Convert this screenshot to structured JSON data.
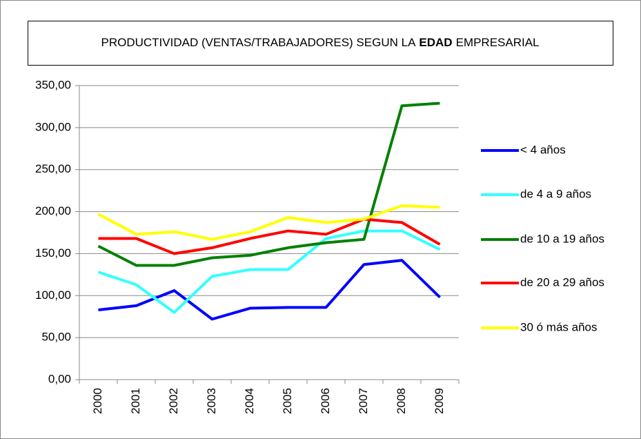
{
  "chart_data": {
    "type": "line",
    "title": [
      "PRODUCTIVIDAD (VENTAS/TRABAJADORES) SEGUN LA",
      "EDAD",
      "EMPRESARIAL"
    ],
    "categories": [
      "2000",
      "2001",
      "2002",
      "2003",
      "2004",
      "2005",
      "2006",
      "2007",
      "2008",
      "2009"
    ],
    "series": [
      {
        "name": "< 4 años",
        "color": "#0000ff",
        "values": [
          83,
          88,
          106,
          72,
          85,
          86,
          86,
          137,
          142,
          98
        ]
      },
      {
        "name": "de 4 a 9 años",
        "color": "#33ffff",
        "values": [
          128,
          113,
          80,
          123,
          131,
          131,
          168,
          177,
          177,
          155
        ]
      },
      {
        "name": "de 10 a 19 años",
        "color": "#008000",
        "values": [
          159,
          136,
          136,
          145,
          148,
          157,
          163,
          167,
          326,
          329
        ]
      },
      {
        "name": "de 20 a 29 años",
        "color": "#ff0000",
        "values": [
          168,
          168,
          150,
          157,
          168,
          177,
          173,
          191,
          187,
          161
        ]
      },
      {
        "name": "30 ó más años",
        "color": "#ffff00",
        "values": [
          197,
          173,
          176,
          167,
          176,
          193,
          187,
          191,
          207,
          205
        ]
      }
    ],
    "ylim": [
      0,
      350
    ],
    "yticks": [
      {
        "value": 0,
        "label": "0,00"
      },
      {
        "value": 50,
        "label": "50,00"
      },
      {
        "value": 100,
        "label": "100,00"
      },
      {
        "value": 150,
        "label": "150,00"
      },
      {
        "value": 200,
        "label": "200,00"
      },
      {
        "value": 250,
        "label": "250,00"
      },
      {
        "value": 300,
        "label": "300,00"
      },
      {
        "value": 350,
        "label": "350,00"
      }
    ],
    "grid": true,
    "legend": "right"
  }
}
